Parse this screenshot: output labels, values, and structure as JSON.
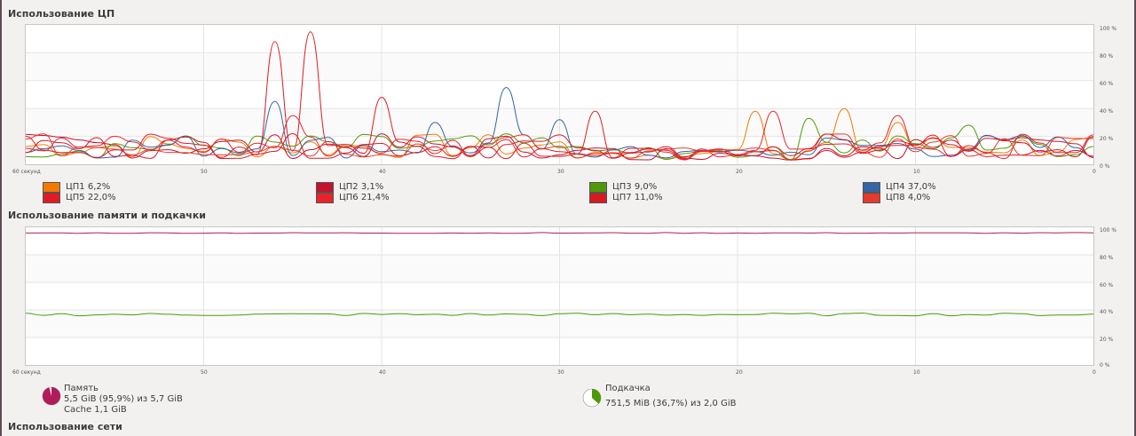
{
  "cpu": {
    "title": "Использование ЦП",
    "y_ticks": [
      "100 %",
      "80 %",
      "60 %",
      "40 %",
      "20 %",
      "0 %"
    ],
    "x_ticks": [
      "60 секунд",
      "50",
      "40",
      "30",
      "20",
      "10",
      "0"
    ],
    "legend": [
      {
        "label": "ЦП1",
        "value": "6,2%",
        "color": "#f57900"
      },
      {
        "label": "ЦП2",
        "value": "3,1%",
        "color": "#c4122e"
      },
      {
        "label": "ЦП3",
        "value": "9,0%",
        "color": "#4e9a06"
      },
      {
        "label": "ЦП4",
        "value": "37,0%",
        "color": "#3465a4"
      },
      {
        "label": "ЦП5",
        "value": "22,0%",
        "color": "#e01b24"
      },
      {
        "label": "ЦП6",
        "value": "21,4%",
        "color": "#e8232a"
      },
      {
        "label": "ЦП7",
        "value": "11,0%",
        "color": "#d71920"
      },
      {
        "label": "ЦП8",
        "value": "4,0%",
        "color": "#e53a2e"
      }
    ]
  },
  "memory": {
    "title": "Использование памяти и подкачки",
    "y_ticks": [
      "100 %",
      "80 %",
      "60 %",
      "40 %",
      "20 %",
      "0 %"
    ],
    "x_ticks": [
      "60 секунд",
      "50",
      "40",
      "30",
      "20",
      "10",
      "0"
    ],
    "ram": {
      "label": "Память",
      "usage": "5,5 GiB (95,9%) из 5,7 GiB",
      "cache": "Cache 1,1 GiB",
      "percent": 95.9,
      "color": "#b01c5a"
    },
    "swap": {
      "label": "Подкачка",
      "usage": "751,5 MiB (36,7%) из 2,0 GiB",
      "percent": 36.7,
      "color": "#4e9a06"
    }
  },
  "network": {
    "title": "Использование сети"
  }
}
